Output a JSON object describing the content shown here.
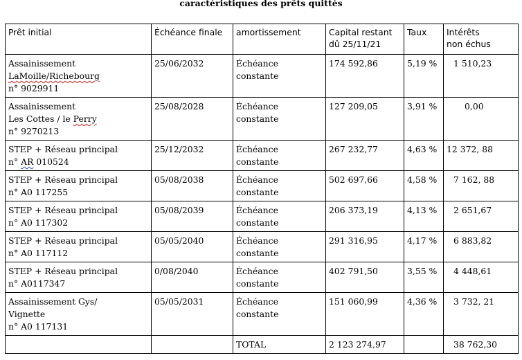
{
  "title": "caractéristiques des prêts quittés",
  "headers": {
    "pret_initial": "Prêt initial",
    "echeance_finale": "Échéance finale",
    "amortissement": "amortissement",
    "capital_line1": "Capital restant",
    "capital_line2": "dû 25/11/21",
    "taux": "Taux",
    "interets_line1": "Intérêts",
    "interets_line2": "non échus"
  },
  "rows": [
    {
      "pret": {
        "l1": "Assainissement",
        "l2": "LaMoille/Richebourg",
        "l3": "n° 9029911"
      },
      "echeance": "25/06/2032",
      "amortissement": "Échéance constante",
      "capital": "174 592,86",
      "taux": "5,19 %",
      "interets": "1 510,23"
    },
    {
      "pret": {
        "l1": "Assainissement",
        "l2a": "Les Cottes / le ",
        "l2b": "Perry",
        "l3": "n° 9270213"
      },
      "echeance": "25/08/2028",
      "amortissement": "Échéance constante",
      "capital": "127 209,05",
      "taux": "3,91 %",
      "interets": "0,00"
    },
    {
      "pret": {
        "l1": "STEP + Réseau principal",
        "l2a": "n° ",
        "l2b": "AR",
        "l2c": " 010524"
      },
      "echeance": "25/12/2032",
      "amortissement": "Échéance constante",
      "capital": "267 232,77",
      "taux": "4,63 %",
      "interets": "12 372, 88"
    },
    {
      "pret": {
        "l1": "STEP + Réseau principal",
        "l2": "n° A0 117255"
      },
      "echeance": "05/08/2038",
      "amortissement": "Échéance constante",
      "capital": "502 697,66",
      "taux": "4,58 %",
      "interets": "7 162, 88"
    },
    {
      "pret": {
        "l1": "STEP + Réseau principal",
        "l2": "n° A0 117302"
      },
      "echeance": "05/08/2039",
      "amortissement": "Échéance constante",
      "capital": "206 373,19",
      "taux": "4,13 %",
      "interets": "2 651,67"
    },
    {
      "pret": {
        "l1": "STEP + Réseau principal",
        "l2": "n° A0 117112"
      },
      "echeance": "05/05/2040",
      "amortissement": "Échéance constante",
      "capital": "291 316,95",
      "taux": "4,17 %",
      "interets": "6 883,82"
    },
    {
      "pret": {
        "l1": "STEP + Réseau principal",
        "l2": "n° A0117347"
      },
      "echeance": "0/08/2040",
      "amortissement": "Échéance constante",
      "capital": "402 791,50",
      "taux": "3,55 %",
      "interets": "4 448,61"
    },
    {
      "pret": {
        "l1": "Assainissement Gys/",
        "l2": "Vignette",
        "l3": "n° A0 117131"
      },
      "echeance": "05/05/2031",
      "amortissement": "Échéance constante",
      "capital": "151 060,99",
      "taux": "4,36 %",
      "interets": "3 732, 21"
    }
  ],
  "total": {
    "label": "TOTAL",
    "capital": "2 123 274,97",
    "interets": "38 762,30"
  },
  "colors": {
    "spell_red": "#d02020",
    "grammar_blue": "#2a4fd6"
  }
}
